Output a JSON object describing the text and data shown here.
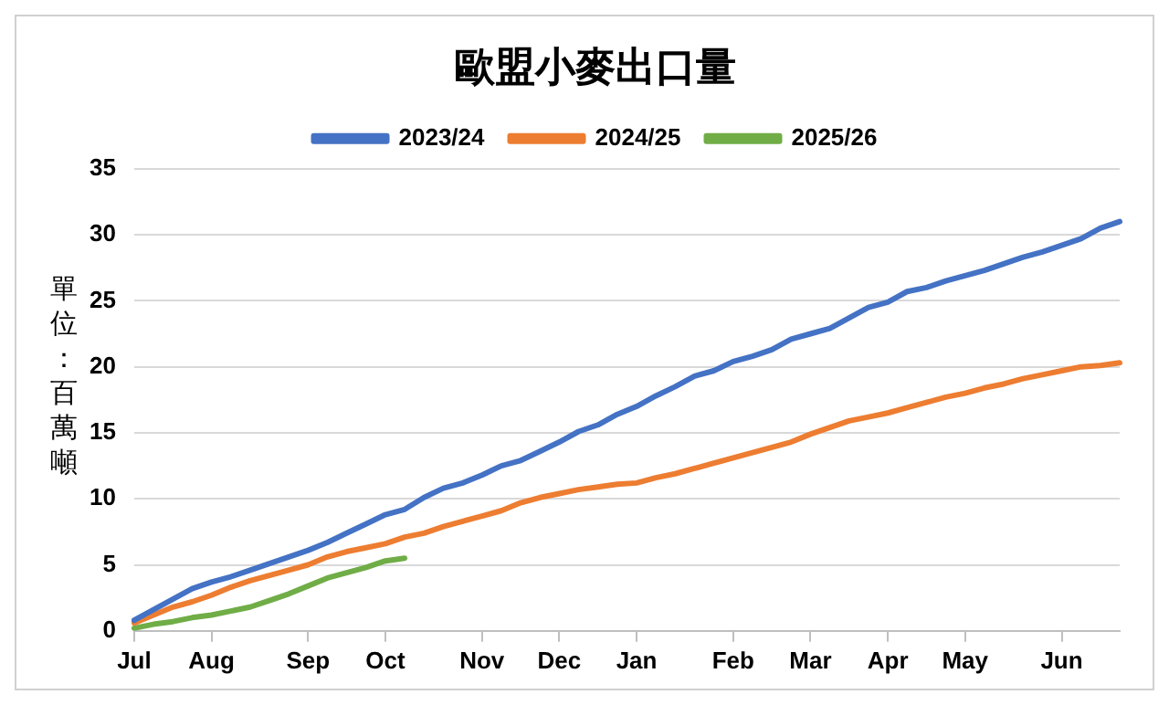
{
  "chart_data": {
    "type": "line",
    "title": "歐盟小麥出口量",
    "ylabel": "單位：百萬噸",
    "categories": [
      "Jul",
      null,
      null,
      null,
      "Aug",
      null,
      null,
      null,
      null,
      "Sep",
      null,
      null,
      null,
      "Oct",
      null,
      null,
      null,
      null,
      "Nov",
      null,
      null,
      null,
      "Dec",
      null,
      null,
      null,
      "Jan",
      null,
      null,
      null,
      null,
      "Feb",
      null,
      null,
      null,
      "Mar",
      null,
      null,
      null,
      "Apr",
      null,
      null,
      null,
      "May",
      null,
      null,
      null,
      null,
      "Jun",
      null,
      null,
      null
    ],
    "series": [
      {
        "name": "2023/24",
        "color": "#4472c4",
        "values": [
          0.8,
          1.6,
          2.4,
          3.2,
          3.7,
          4.1,
          4.6,
          5.1,
          5.6,
          6.1,
          6.7,
          7.4,
          8.1,
          8.8,
          9.2,
          10.1,
          10.8,
          11.2,
          11.8,
          12.5,
          12.9,
          13.6,
          14.3,
          15.1,
          15.6,
          16.4,
          17.0,
          17.8,
          18.5,
          19.3,
          19.7,
          20.4,
          20.8,
          21.3,
          22.1,
          22.5,
          22.9,
          23.7,
          24.5,
          24.9,
          25.7,
          26.0,
          26.5,
          26.9,
          27.3,
          27.8,
          28.3,
          28.7,
          29.2,
          29.7,
          30.5,
          31.0
        ]
      },
      {
        "name": "2024/25",
        "color": "#ed7d31",
        "values": [
          0.6,
          1.2,
          1.8,
          2.2,
          2.7,
          3.3,
          3.8,
          4.2,
          4.6,
          5.0,
          5.6,
          6.0,
          6.3,
          6.6,
          7.1,
          7.4,
          7.9,
          8.3,
          8.7,
          9.1,
          9.7,
          10.1,
          10.4,
          10.7,
          10.9,
          11.1,
          11.2,
          11.6,
          11.9,
          12.3,
          12.7,
          13.1,
          13.5,
          13.9,
          14.3,
          14.9,
          15.4,
          15.9,
          16.2,
          16.5,
          16.9,
          17.3,
          17.7,
          18.0,
          18.4,
          18.7,
          19.1,
          19.4,
          19.7,
          20.0,
          20.1,
          20.3
        ]
      },
      {
        "name": "2025/26",
        "color": "#70ad47",
        "values": [
          0.2,
          0.5,
          0.7,
          1.0,
          1.2,
          1.5,
          1.8,
          2.3,
          2.8,
          3.4,
          4.0,
          4.4,
          4.8,
          5.3,
          5.5,
          null,
          null,
          null,
          null,
          null,
          null,
          null,
          null,
          null,
          null,
          null,
          null,
          null,
          null,
          null,
          null,
          null,
          null,
          null,
          null,
          null,
          null,
          null,
          null,
          null,
          null,
          null,
          null,
          null,
          null,
          null,
          null,
          null,
          null,
          null,
          null,
          null
        ]
      }
    ],
    "ylim": [
      0,
      35
    ],
    "yticks": [
      0,
      5,
      10,
      15,
      20,
      25,
      30,
      35
    ],
    "grid": "y",
    "legend": "top",
    "marker": "none",
    "line_style": "solid"
  }
}
